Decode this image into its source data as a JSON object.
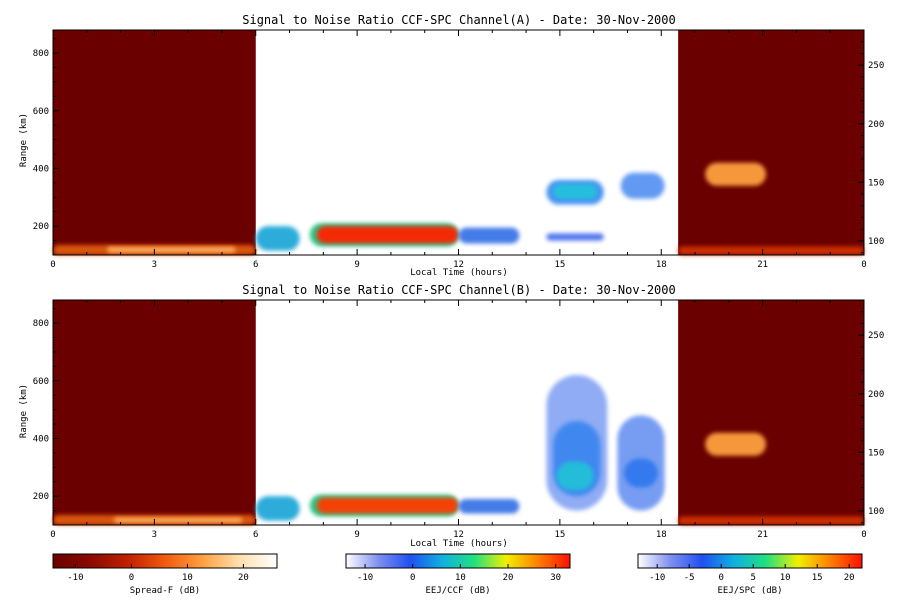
{
  "chart_data": [
    {
      "type": "heatmap",
      "title": "Signal to Noise Ratio CCF-SPC Channel(A) - Date: 30-Nov-2000",
      "xlabel": "Local Time (hours)",
      "ylabel": "Range (km)",
      "xlim": [
        0,
        24
      ],
      "ylim": [
        100,
        880
      ],
      "right_ylim": [
        88,
        280
      ],
      "x_ticks": [
        "0",
        "3",
        "6",
        "9",
        "12",
        "15",
        "18",
        "21",
        "0"
      ],
      "y_ticks": [
        "200",
        "400",
        "600",
        "800"
      ],
      "right_y_ticks": [
        "100",
        "150",
        "200",
        "250"
      ],
      "regions": [
        {
          "name": "night-left",
          "colorbar": "Spread-F",
          "t_start": 0,
          "t_end": 6,
          "range_start": 100,
          "range_end": 880,
          "background_db": -12
        },
        {
          "name": "night-right",
          "colorbar": "Spread-F",
          "t_start": 18.5,
          "t_end": 24,
          "range_start": 100,
          "range_end": 880,
          "background_db": -12
        }
      ],
      "features": [
        {
          "t_start": 0,
          "t_end": 6,
          "range_start": 100,
          "range_end": 135,
          "color": "#e05a10"
        },
        {
          "t_start": 1.6,
          "t_end": 5.4,
          "range_start": 108,
          "range_end": 128,
          "color": "#ffb060"
        },
        {
          "t_start": 6,
          "t_end": 7.3,
          "range_start": 115,
          "range_end": 200,
          "color": "#22a8d8"
        },
        {
          "t_start": 7.6,
          "t_end": 12,
          "range_start": 130,
          "range_end": 210,
          "color": "#20c080"
        },
        {
          "t_start": 7.8,
          "t_end": 12,
          "range_start": 140,
          "range_end": 200,
          "color": "#ff2000"
        },
        {
          "t_start": 12,
          "t_end": 13.8,
          "range_start": 140,
          "range_end": 195,
          "color": "#3a74e6"
        },
        {
          "t_start": 14.6,
          "t_end": 16.3,
          "range_start": 275,
          "range_end": 360,
          "color": "#3f8ff0"
        },
        {
          "t_start": 14.8,
          "t_end": 16.1,
          "range_start": 295,
          "range_end": 345,
          "color": "#22c2dc"
        },
        {
          "t_start": 14.6,
          "t_end": 16.3,
          "range_start": 150,
          "range_end": 175,
          "color": "#4a6ff0"
        },
        {
          "t_start": 16.8,
          "t_end": 18.1,
          "range_start": 295,
          "range_end": 385,
          "color": "#5a94f2"
        },
        {
          "t_start": 19.3,
          "t_end": 21.1,
          "range_start": 340,
          "range_end": 420,
          "color": "#ffa040"
        },
        {
          "t_start": 18.5,
          "t_end": 24,
          "range_start": 100,
          "range_end": 130,
          "color": "#d03000"
        }
      ]
    },
    {
      "type": "heatmap",
      "title": "Signal to Noise Ratio CCF-SPC Channel(B) - Date: 30-Nov-2000",
      "xlabel": "Local Time (hours)",
      "ylabel": "Range (km)",
      "xlim": [
        0,
        24
      ],
      "ylim": [
        100,
        880
      ],
      "right_ylim": [
        88,
        280
      ],
      "x_ticks": [
        "0",
        "3",
        "6",
        "9",
        "12",
        "15",
        "18",
        "21",
        "0"
      ],
      "y_ticks": [
        "200",
        "400",
        "600",
        "800"
      ],
      "right_y_ticks": [
        "100",
        "150",
        "200",
        "250"
      ],
      "regions": [
        {
          "name": "night-left",
          "colorbar": "Spread-F",
          "t_start": 0,
          "t_end": 6,
          "range_start": 100,
          "range_end": 880,
          "background_db": -12
        },
        {
          "name": "night-right",
          "colorbar": "Spread-F",
          "t_start": 18.5,
          "t_end": 24,
          "range_start": 100,
          "range_end": 880,
          "background_db": -12
        }
      ],
      "features": [
        {
          "t_start": 0,
          "t_end": 6,
          "range_start": 100,
          "range_end": 135,
          "color": "#e05a10"
        },
        {
          "t_start": 1.8,
          "t_end": 5.6,
          "range_start": 108,
          "range_end": 126,
          "color": "#ffb060"
        },
        {
          "t_start": 6,
          "t_end": 7.3,
          "range_start": 115,
          "range_end": 200,
          "color": "#22a8d8"
        },
        {
          "t_start": 7.6,
          "t_end": 12,
          "range_start": 130,
          "range_end": 205,
          "color": "#20c080"
        },
        {
          "t_start": 7.8,
          "t_end": 12,
          "range_start": 140,
          "range_end": 195,
          "color": "#ff3a00"
        },
        {
          "t_start": 12,
          "t_end": 13.8,
          "range_start": 140,
          "range_end": 190,
          "color": "#3a74e6"
        },
        {
          "t_start": 14.6,
          "t_end": 16.4,
          "range_start": 150,
          "range_end": 620,
          "color": "#8aa8f4"
        },
        {
          "t_start": 14.8,
          "t_end": 16.2,
          "range_start": 200,
          "range_end": 460,
          "color": "#3d86f0"
        },
        {
          "t_start": 14.9,
          "t_end": 16.0,
          "range_start": 220,
          "range_end": 320,
          "color": "#22c0d8"
        },
        {
          "t_start": 16.7,
          "t_end": 18.1,
          "range_start": 150,
          "range_end": 480,
          "color": "#6f98f2"
        },
        {
          "t_start": 16.9,
          "t_end": 17.9,
          "range_start": 230,
          "range_end": 330,
          "color": "#3278ee"
        },
        {
          "t_start": 19.3,
          "t_end": 21.1,
          "range_start": 340,
          "range_end": 420,
          "color": "#ffa040"
        },
        {
          "t_start": 18.5,
          "t_end": 24,
          "range_start": 100,
          "range_end": 130,
          "color": "#d03000"
        }
      ]
    }
  ],
  "colorbars": [
    {
      "label": "Spread-F (dB)",
      "ticks": [
        "-10",
        "0",
        "10",
        "20"
      ],
      "tick_values": [
        -10,
        0,
        10,
        20
      ],
      "min": -14,
      "max": 26,
      "colors": [
        "#6a0000",
        "#8a0a00",
        "#c02000",
        "#f05a10",
        "#ffa040",
        "#ffe0b0",
        "#ffffff"
      ]
    },
    {
      "label": "EEJ/CCF (dB)",
      "ticks": [
        "-10",
        "0",
        "10",
        "20",
        "30"
      ],
      "tick_values": [
        -10,
        0,
        10,
        20,
        30
      ],
      "min": -14,
      "max": 33,
      "colors": [
        "#ffffff",
        "#8090f0",
        "#2050f0",
        "#10b0e0",
        "#20e080",
        "#f0f000",
        "#ff8000",
        "#ff1000"
      ]
    },
    {
      "label": "EEJ/SPC (dB)",
      "ticks": [
        "-10",
        "-5",
        "0",
        "5",
        "10",
        "15",
        "20"
      ],
      "tick_values": [
        -10,
        -5,
        0,
        5,
        10,
        15,
        20
      ],
      "min": -13,
      "max": 22,
      "colors": [
        "#ffffff",
        "#8090f0",
        "#2050f0",
        "#10b0e0",
        "#20e080",
        "#f0f000",
        "#ff8000",
        "#ff1000"
      ]
    }
  ]
}
